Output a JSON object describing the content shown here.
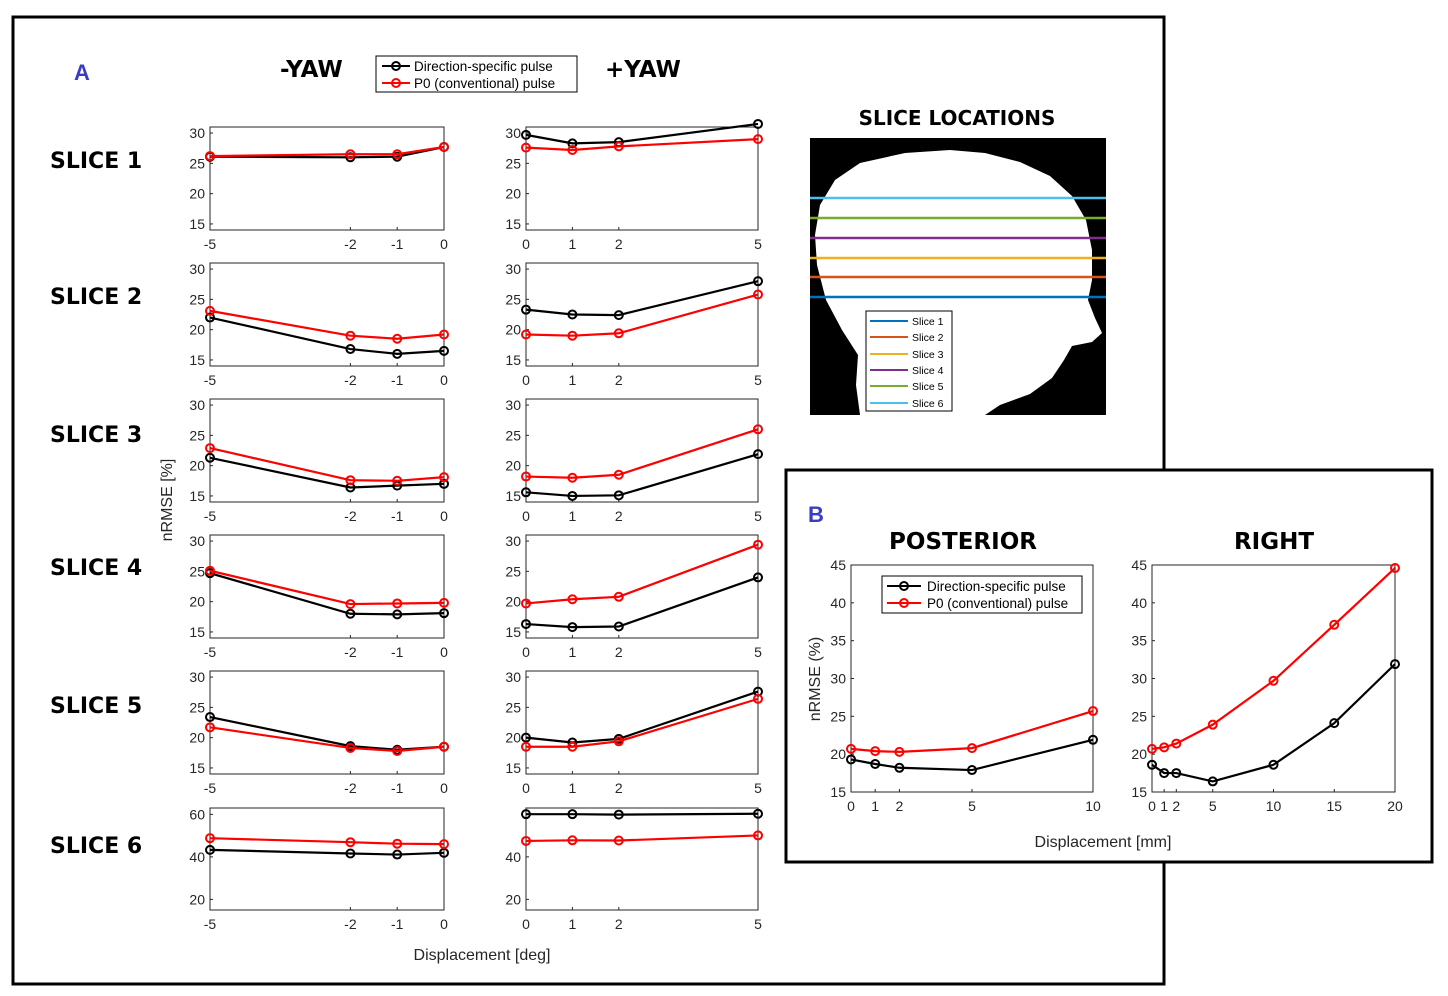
{
  "colors": {
    "direction_specific": "#000000",
    "p0": "#ff0000",
    "panel_letter": "#3b3bc4",
    "slice_lines": [
      "#0072bd",
      "#d95319",
      "#edb120",
      "#7e2f8e",
      "#77ac30",
      "#4dbeee"
    ]
  },
  "panel_a": {
    "letter": "A",
    "minus_title": "-YAW",
    "plus_title": "+YAW",
    "legend": [
      "Direction-specific pulse",
      "P0 (conventional) pulse"
    ],
    "ylabel": "nRMSE [%]",
    "xlabel": "Displacement [deg]",
    "row_labels": [
      "SLICE 1",
      "SLICE 2",
      "SLICE 3",
      "SLICE 4",
      "SLICE 5",
      "SLICE 6"
    ]
  },
  "slice_locations": {
    "title": "SLICE LOCATIONS",
    "legend": [
      "Slice 1",
      "Slice 2",
      "Slice 3",
      "Slice 4",
      "Slice 5",
      "Slice 6"
    ]
  },
  "panel_b": {
    "letter": "B",
    "posterior_title": "POSTERIOR",
    "right_title": "RIGHT",
    "legend": [
      "Direction-specific pulse",
      "P0 (conventional) pulse"
    ],
    "ylabel": "nRMSE (%)",
    "xlabel": "Displacement [mm]"
  },
  "chart_data": [
    {
      "id": "s1_minus",
      "type": "line",
      "title": "SLICE 1",
      "xlabel": "Displacement [deg]",
      "ylabel": "nRMSE [%]",
      "x": [
        -5,
        -2,
        -1,
        0
      ],
      "xticks": [
        -5,
        -2,
        -1,
        0
      ],
      "ylim": [
        14,
        31
      ],
      "yticks": [
        15,
        20,
        25,
        30
      ],
      "series": [
        {
          "name": "Direction-specific pulse",
          "values": [
            26.1,
            26.0,
            26.1,
            27.7
          ]
        },
        {
          "name": "P0 (conventional) pulse",
          "values": [
            26.2,
            26.5,
            26.5,
            27.7
          ]
        }
      ]
    },
    {
      "id": "s1_plus",
      "type": "line",
      "title": "SLICE 1",
      "xlabel": "Displacement [deg]",
      "ylabel": "nRMSE [%]",
      "x": [
        0,
        1,
        2,
        5
      ],
      "xticks": [
        0,
        1,
        2,
        5
      ],
      "ylim": [
        14,
        31
      ],
      "yticks": [
        15,
        20,
        25,
        30
      ],
      "series": [
        {
          "name": "Direction-specific pulse",
          "values": [
            29.7,
            28.3,
            28.5,
            31.5
          ]
        },
        {
          "name": "P0 (conventional) pulse",
          "values": [
            27.6,
            27.2,
            27.8,
            29.0
          ]
        }
      ]
    },
    {
      "id": "s2_minus",
      "type": "line",
      "title": "SLICE 2",
      "xlabel": "Displacement [deg]",
      "ylabel": "nRMSE [%]",
      "x": [
        -5,
        -2,
        -1,
        0
      ],
      "xticks": [
        -5,
        -2,
        -1,
        0
      ],
      "ylim": [
        14,
        31
      ],
      "yticks": [
        15,
        20,
        25,
        30
      ],
      "series": [
        {
          "name": "Direction-specific pulse",
          "values": [
            22.0,
            16.8,
            16.0,
            16.5
          ]
        },
        {
          "name": "P0 (conventional) pulse",
          "values": [
            23.1,
            19.0,
            18.5,
            19.2
          ]
        }
      ]
    },
    {
      "id": "s2_plus",
      "type": "line",
      "title": "SLICE 2",
      "xlabel": "Displacement [deg]",
      "ylabel": "nRMSE [%]",
      "x": [
        0,
        1,
        2,
        5
      ],
      "xticks": [
        0,
        1,
        2,
        5
      ],
      "ylim": [
        14,
        31
      ],
      "yticks": [
        15,
        20,
        25,
        30
      ],
      "series": [
        {
          "name": "Direction-specific pulse",
          "values": [
            23.3,
            22.5,
            22.4,
            28.0
          ]
        },
        {
          "name": "P0 (conventional) pulse",
          "values": [
            19.2,
            19.0,
            19.4,
            25.8
          ]
        }
      ]
    },
    {
      "id": "s3_minus",
      "type": "line",
      "title": "SLICE 3",
      "xlabel": "Displacement [deg]",
      "ylabel": "nRMSE [%]",
      "x": [
        -5,
        -2,
        -1,
        0
      ],
      "xticks": [
        -5,
        -2,
        -1,
        0
      ],
      "ylim": [
        14,
        31
      ],
      "yticks": [
        15,
        20,
        25,
        30
      ],
      "series": [
        {
          "name": "Direction-specific pulse",
          "values": [
            21.3,
            16.4,
            16.7,
            17.0
          ]
        },
        {
          "name": "P0 (conventional) pulse",
          "values": [
            22.9,
            17.6,
            17.5,
            18.1
          ]
        }
      ]
    },
    {
      "id": "s3_plus",
      "type": "line",
      "title": "SLICE 3",
      "xlabel": "Displacement [deg]",
      "ylabel": "nRMSE [%]",
      "x": [
        0,
        1,
        2,
        5
      ],
      "xticks": [
        0,
        1,
        2,
        5
      ],
      "ylim": [
        14,
        31
      ],
      "yticks": [
        15,
        20,
        25,
        30
      ],
      "series": [
        {
          "name": "Direction-specific pulse",
          "values": [
            15.6,
            15.0,
            15.1,
            21.9
          ]
        },
        {
          "name": "P0 (conventional) pulse",
          "values": [
            18.2,
            18.0,
            18.5,
            26.0
          ]
        }
      ]
    },
    {
      "id": "s4_minus",
      "type": "line",
      "title": "SLICE 4",
      "xlabel": "Displacement [deg]",
      "ylabel": "nRMSE [%]",
      "x": [
        -5,
        -2,
        -1,
        0
      ],
      "xticks": [
        -5,
        -2,
        -1,
        0
      ],
      "ylim": [
        14,
        31
      ],
      "yticks": [
        15,
        20,
        25,
        30
      ],
      "series": [
        {
          "name": "Direction-specific pulse",
          "values": [
            24.7,
            18.0,
            17.9,
            18.1
          ]
        },
        {
          "name": "P0 (conventional) pulse",
          "values": [
            25.1,
            19.6,
            19.7,
            19.8
          ]
        }
      ]
    },
    {
      "id": "s4_plus",
      "type": "line",
      "title": "SLICE 4",
      "xlabel": "Displacement [deg]",
      "ylabel": "nRMSE [%]",
      "x": [
        0,
        1,
        2,
        5
      ],
      "xticks": [
        0,
        1,
        2,
        5
      ],
      "ylim": [
        14,
        31
      ],
      "yticks": [
        15,
        20,
        25,
        30
      ],
      "series": [
        {
          "name": "Direction-specific pulse",
          "values": [
            16.3,
            15.8,
            15.9,
            24.0
          ]
        },
        {
          "name": "P0 (conventional) pulse",
          "values": [
            19.7,
            20.4,
            20.8,
            29.4
          ]
        }
      ]
    },
    {
      "id": "s5_minus",
      "type": "line",
      "title": "SLICE 5",
      "xlabel": "Displacement [deg]",
      "ylabel": "nRMSE [%]",
      "x": [
        -5,
        -2,
        -1,
        0
      ],
      "xticks": [
        -5,
        -2,
        -1,
        0
      ],
      "ylim": [
        14,
        31
      ],
      "yticks": [
        15,
        20,
        25,
        30
      ],
      "series": [
        {
          "name": "Direction-specific pulse",
          "values": [
            23.4,
            18.6,
            18.0,
            18.5
          ]
        },
        {
          "name": "P0 (conventional) pulse",
          "values": [
            21.7,
            18.3,
            17.8,
            18.5
          ]
        }
      ]
    },
    {
      "id": "s5_plus",
      "type": "line",
      "title": "SLICE 5",
      "xlabel": "Displacement [deg]",
      "ylabel": "nRMSE [%]",
      "x": [
        0,
        1,
        2,
        5
      ],
      "xticks": [
        0,
        1,
        2,
        5
      ],
      "ylim": [
        14,
        31
      ],
      "yticks": [
        15,
        20,
        25,
        30
      ],
      "series": [
        {
          "name": "Direction-specific pulse",
          "values": [
            20.0,
            19.2,
            19.8,
            27.6
          ]
        },
        {
          "name": "P0 (conventional) pulse",
          "values": [
            18.5,
            18.5,
            19.4,
            26.4
          ]
        }
      ]
    },
    {
      "id": "s6_minus",
      "type": "line",
      "title": "SLICE 6",
      "xlabel": "Displacement [deg]",
      "ylabel": "nRMSE [%]",
      "x": [
        -5,
        -2,
        -1,
        0
      ],
      "xticks": [
        -5,
        -2,
        -1,
        0
      ],
      "ylim": [
        15,
        63
      ],
      "yticks": [
        20,
        40,
        60
      ],
      "series": [
        {
          "name": "Direction-specific pulse",
          "values": [
            43.3,
            41.6,
            41.1,
            41.9
          ]
        },
        {
          "name": "P0 (conventional) pulse",
          "values": [
            48.8,
            46.9,
            46.2,
            46.0
          ]
        }
      ]
    },
    {
      "id": "s6_plus",
      "type": "line",
      "title": "SLICE 6",
      "xlabel": "Displacement [deg]",
      "ylabel": "nRMSE [%]",
      "x": [
        0,
        1,
        2,
        5
      ],
      "xticks": [
        0,
        1,
        2,
        5
      ],
      "ylim": [
        15,
        63
      ],
      "yticks": [
        20,
        40
      ],
      "series": [
        {
          "name": "Direction-specific pulse",
          "values": [
            60.1,
            60.1,
            59.9,
            60.3
          ]
        },
        {
          "name": "P0 (conventional) pulse",
          "values": [
            47.5,
            47.8,
            47.7,
            50.1
          ]
        }
      ]
    },
    {
      "id": "posterior",
      "type": "line",
      "title": "POSTERIOR",
      "xlabel": "Displacement [mm]",
      "ylabel": "nRMSE (%)",
      "x": [
        0,
        1,
        2,
        5,
        10
      ],
      "xticks": [
        0,
        1,
        2,
        5,
        10
      ],
      "ylim": [
        15,
        45
      ],
      "yticks": [
        15,
        20,
        25,
        30,
        35,
        40,
        45
      ],
      "series": [
        {
          "name": "Direction-specific pulse",
          "values": [
            19.3,
            18.7,
            18.2,
            17.9,
            21.9
          ]
        },
        {
          "name": "P0 (conventional) pulse",
          "values": [
            20.7,
            20.4,
            20.3,
            20.8,
            25.7
          ]
        }
      ]
    },
    {
      "id": "right",
      "type": "line",
      "title": "RIGHT",
      "xlabel": "Displacement [mm]",
      "ylabel": "nRMSE (%)",
      "x": [
        0,
        1,
        2,
        5,
        10,
        15,
        20
      ],
      "xticks": [
        0,
        1,
        2,
        5,
        10,
        15,
        20
      ],
      "ylim": [
        15,
        45
      ],
      "yticks": [
        15,
        20,
        25,
        30,
        35,
        40,
        45
      ],
      "series": [
        {
          "name": "Direction-specific pulse",
          "values": [
            18.6,
            17.5,
            17.5,
            16.4,
            18.6,
            24.1,
            31.9
          ]
        },
        {
          "name": "P0 (conventional) pulse",
          "values": [
            20.7,
            20.9,
            21.4,
            23.9,
            29.7,
            37.1,
            44.6
          ]
        }
      ]
    }
  ]
}
